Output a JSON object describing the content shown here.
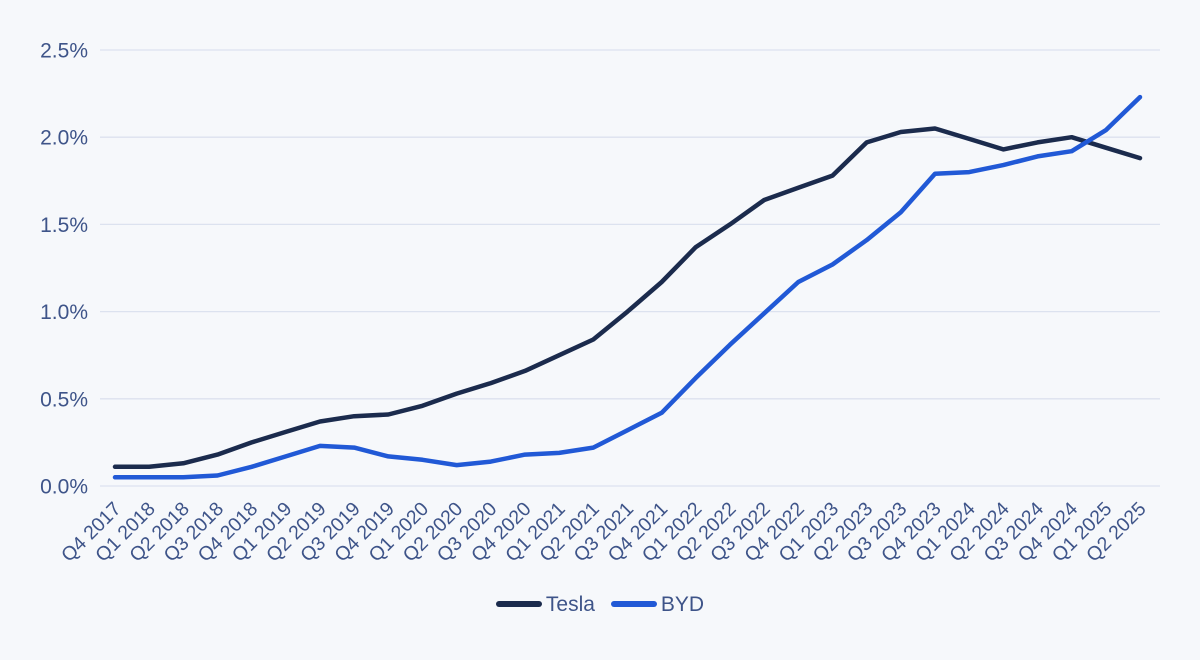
{
  "chart_data": {
    "type": "line",
    "title": "",
    "xlabel": "",
    "ylabel": "",
    "categories": [
      "Q4 2017",
      "Q1 2018",
      "Q2 2018",
      "Q3 2018",
      "Q4 2018",
      "Q1 2019",
      "Q2 2019",
      "Q3 2019",
      "Q4 2019",
      "Q1 2020",
      "Q2 2020",
      "Q3 2020",
      "Q4 2020",
      "Q1 2021",
      "Q2 2021",
      "Q3 2021",
      "Q4 2021",
      "Q1 2022",
      "Q2 2022",
      "Q3 2022",
      "Q4 2022",
      "Q1 2023",
      "Q2 2023",
      "Q3 2023",
      "Q4 2023",
      "Q1 2024",
      "Q2 2024",
      "Q3 2024",
      "Q4 2024",
      "Q1 2025",
      "Q2 2025"
    ],
    "series": [
      {
        "name": "Tesla",
        "color": "#1b2b4d",
        "values": [
          0.11,
          0.11,
          0.13,
          0.18,
          0.25,
          0.31,
          0.37,
          0.4,
          0.41,
          0.46,
          0.53,
          0.59,
          0.66,
          0.75,
          0.84,
          1.0,
          1.17,
          1.37,
          1.5,
          1.64,
          1.71,
          1.78,
          1.97,
          2.03,
          2.05,
          1.99,
          1.93,
          1.97,
          2.0,
          1.94,
          1.88
        ]
      },
      {
        "name": "BYD",
        "color": "#2159d6",
        "values": [
          0.05,
          0.05,
          0.05,
          0.06,
          0.11,
          0.17,
          0.23,
          0.22,
          0.17,
          0.15,
          0.12,
          0.14,
          0.18,
          0.19,
          0.22,
          0.32,
          0.42,
          0.62,
          0.81,
          0.99,
          1.17,
          1.27,
          1.41,
          1.57,
          1.79,
          1.8,
          1.84,
          1.89,
          1.92,
          2.04,
          2.23
        ]
      }
    ],
    "y_ticks": {
      "values": [
        0,
        0.5,
        1.0,
        1.5,
        2.0,
        2.5
      ],
      "labels": [
        "0.0%",
        "0.5%",
        "1.0%",
        "1.5%",
        "2.0%",
        "2.5%"
      ]
    },
    "ylim": [
      0,
      2.5
    ],
    "grid": "horizontal",
    "legend_position": "bottom-center",
    "colors": {
      "background": "#f6f8fb",
      "gridline": "#dce2ef",
      "tick_label": "#3e5489"
    }
  }
}
